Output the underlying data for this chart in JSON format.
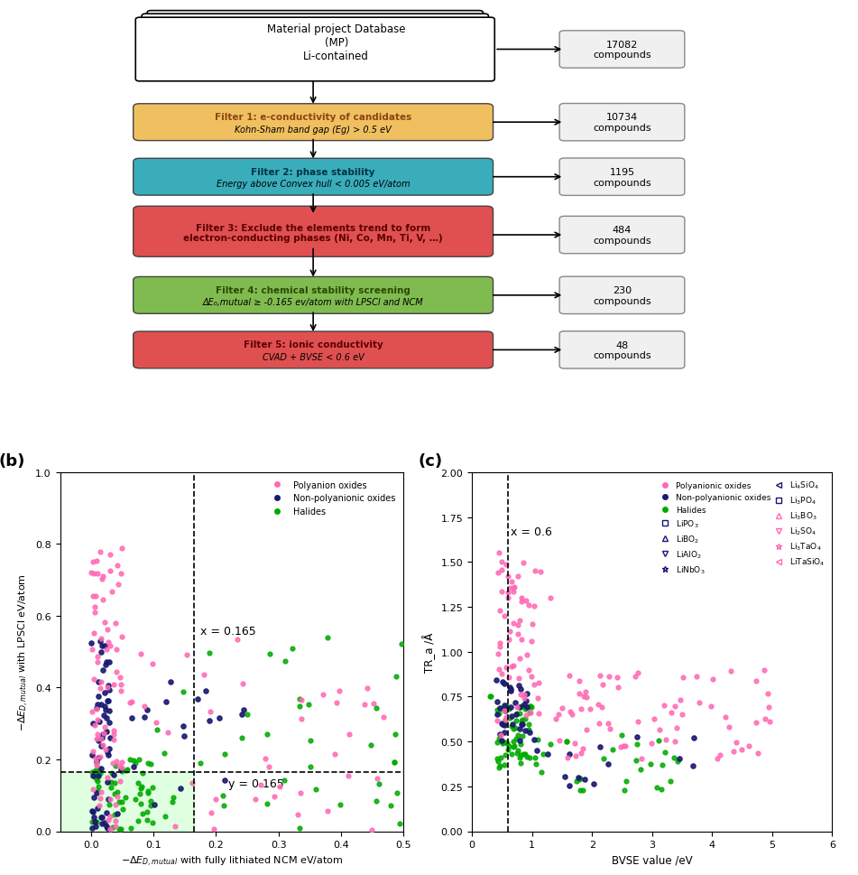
{
  "panel_a": {
    "filters": [
      {
        "label": "Filter 1: e-conductivity of candidates",
        "sublabel": "Kohn-Sham band gap (Eg) > 0.5 eV",
        "color": "#F0C060",
        "text_color": "#8B4513",
        "count": "10734\ncompounds"
      },
      {
        "label": "Filter 2: phase stability",
        "sublabel": "Energy above Convex hull < 0.005 eV/atom",
        "color": "#3AADBB",
        "text_color": "#003344",
        "count": "1195\ncompounds"
      },
      {
        "label": "Filter 3: Exclude the elements trend to form\nelectron-conducting phases (Ni, Co, Mn, Ti, V, …)",
        "sublabel": "",
        "color": "#E05050",
        "text_color": "#5C0000",
        "count": "484\ncompounds"
      },
      {
        "label": "Filter 4: chemical stability screening",
        "sublabel": "ΔE₀,mutual ≥ -0.165 ev/atom with LPSCl and NCM",
        "color": "#80BB50",
        "text_color": "#2A4A00",
        "count": "230\ncompounds"
      },
      {
        "label": "Filter 5: ionic conductivity",
        "sublabel": "CVAD + BVSE < 0.6 eV",
        "color": "#E05050",
        "text_color": "#5C0000",
        "count": "48\ncompounds"
      }
    ],
    "db_text": "Material project Database\n(MP)\nLi-contained",
    "db_count": "17082\ncompounds"
  },
  "scatter_b": {
    "xlim": [
      -0.05,
      0.5
    ],
    "ylim": [
      0.0,
      1.0
    ],
    "xlabel": "-ΔEᴅ,ₘᵁᵗᵘᵃᴸ with fully lithiated NCM eV/atom",
    "ylabel": "-ΔEᴅ,ₘᵁᵗᵘᵃᴸ with LPSCl eV/atom",
    "vline": 0.165,
    "hline": 0.165,
    "vline_label": "x = 0.165",
    "hline_label": "y = 0.165",
    "highlight_color": "#CCFFCC",
    "colors": {
      "polyanionic": "#FF69B4",
      "non_polyanionic": "#191970",
      "halides": "#00AA00"
    }
  },
  "scatter_c": {
    "xlim": [
      0,
      6
    ],
    "ylim": [
      0.0,
      2.0
    ],
    "xlabel": "BVSE value /eV",
    "ylabel": "TR_a /Å",
    "vline": 0.6,
    "vline_label": "x = 0.6",
    "colors": {
      "polyanionic": "#FF69B4",
      "non_polyanionic": "#191970",
      "halides": "#00AA00"
    }
  }
}
